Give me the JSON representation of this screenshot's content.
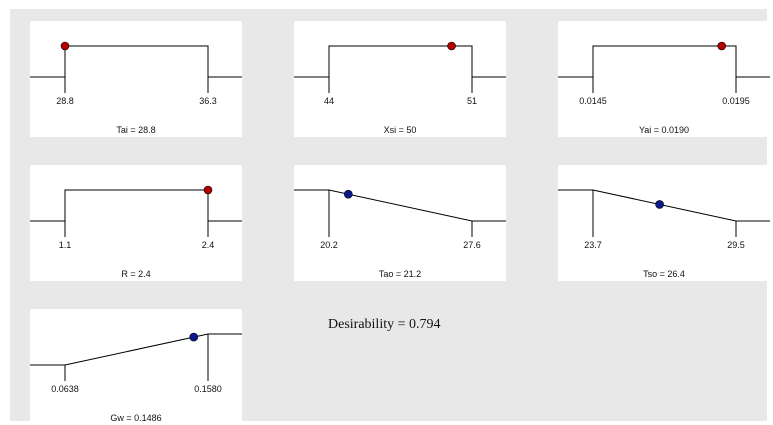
{
  "chart_data": [
    {
      "type": "desirability-ramp",
      "var": "Tai",
      "shape": "range",
      "low": 28.8,
      "high": 36.3,
      "value": 28.8,
      "low_label": "28.8",
      "high_label": "36.3",
      "label": "Tai = 28.8",
      "dot_color": "#b30000"
    },
    {
      "type": "desirability-ramp",
      "var": "Xsi",
      "shape": "range",
      "low": 44,
      "high": 51,
      "value": 50,
      "low_label": "44",
      "high_label": "51",
      "label": "Xsi = 50",
      "dot_color": "#b30000"
    },
    {
      "type": "desirability-ramp",
      "var": "Yai",
      "shape": "range",
      "low": 0.0145,
      "high": 0.0195,
      "value": 0.019,
      "low_label": "0.0145",
      "high_label": "0.0195",
      "label": "Yai = 0.0190",
      "dot_color": "#b30000"
    },
    {
      "type": "desirability-ramp",
      "var": "R",
      "shape": "range",
      "low": 1.1,
      "high": 2.4,
      "value": 2.4,
      "low_label": "1.1",
      "high_label": "2.4",
      "label": "R = 2.4",
      "dot_color": "#b30000"
    },
    {
      "type": "desirability-ramp",
      "var": "Tao",
      "shape": "minimize",
      "low": 20.2,
      "high": 27.6,
      "value": 21.2,
      "low_label": "20.2",
      "high_label": "27.6",
      "label": "Tao = 21.2",
      "dot_color": "#0a1a8c"
    },
    {
      "type": "desirability-ramp",
      "var": "Tso",
      "shape": "minimize",
      "low": 23.7,
      "high": 29.5,
      "value": 26.4,
      "low_label": "23.7",
      "high_label": "29.5",
      "label": "Tso = 26.4",
      "dot_color": "#0a1a8c"
    },
    {
      "type": "desirability-ramp",
      "var": "Gw",
      "shape": "maximize",
      "low": 0.0638,
      "high": 0.158,
      "value": 0.1486,
      "low_label": "0.0638",
      "high_label": "0.1580",
      "label": "Gw = 0.1486",
      "dot_color": "#0a1a8c"
    }
  ],
  "summary": {
    "desirability_text": "Desirability = 0.794"
  }
}
